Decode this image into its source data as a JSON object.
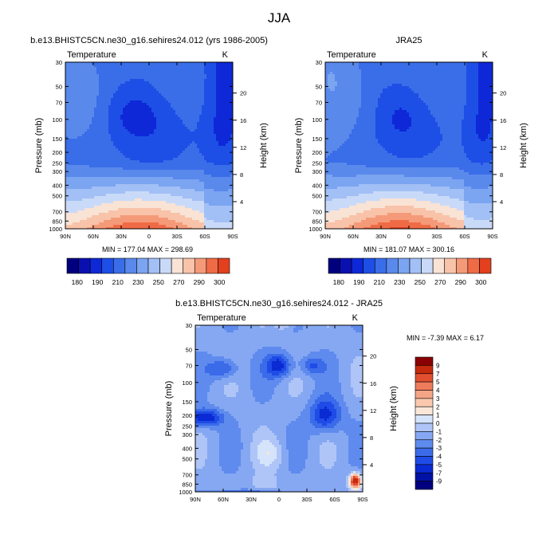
{
  "figure": {
    "title": "JJA"
  },
  "colors": {
    "model": [
      "#00007f",
      "#0a10b0",
      "#0e28d8",
      "#1d4fe6",
      "#3a6de8",
      "#5a89ec",
      "#7ba4f1",
      "#a2c0f5",
      "#c9daf8",
      "#f9e3d5",
      "#f8c3a9",
      "#f59a79",
      "#ef6b46",
      "#e2401f",
      "#c31c06",
      "#8b0000"
    ],
    "diff": [
      "#00007f",
      "#0012a6",
      "#0a2bd3",
      "#1f4be6",
      "#3b6be9",
      "#5f8bee",
      "#86a8f2",
      "#afc5f7",
      "#d5e3fb",
      "#fbe6d8",
      "#f9c8ae",
      "#f4a586",
      "#ee7b5b",
      "#e24f30",
      "#c52a0e",
      "#8b0000"
    ]
  },
  "chart_data": [
    {
      "type": "heatmap",
      "panel": "model",
      "title": "b.e13.BHISTC5CN.ne30_g16.sehires24.012 (yrs 1986-2005)",
      "variable": "Temperature",
      "units": "K",
      "xlabel": "",
      "ylabel": "Pressure (mb)",
      "y2label": "Height (km)",
      "x_ticks": [
        "90N",
        "60N",
        "30N",
        "0",
        "30S",
        "60S",
        "90S"
      ],
      "y_ticks": [
        30,
        50,
        70,
        100,
        150,
        200,
        250,
        300,
        400,
        500,
        700,
        850,
        1000
      ],
      "y2_ticks": [
        4,
        8,
        12,
        16,
        20
      ],
      "ylim": [
        1000,
        30
      ],
      "min": 177.04,
      "max": 298.69,
      "stats_text": "MIN = 177.04  MAX = 298.69",
      "levels": [
        180,
        190,
        200,
        210,
        220,
        230,
        240,
        250,
        260,
        270,
        280,
        290,
        300
      ],
      "colorbar_labels": [
        "180",
        "190",
        "210",
        "230",
        "250",
        "270",
        "290",
        "300"
      ],
      "field_key": "model"
    },
    {
      "type": "heatmap",
      "panel": "obs",
      "title": "JRA25",
      "variable": "Temperature",
      "units": "K",
      "xlabel": "",
      "ylabel": "Pressure (mb)",
      "y2label": "Height (km)",
      "x_ticks": [
        "90N",
        "60N",
        "30N",
        "0",
        "30S",
        "60S",
        "90S"
      ],
      "y_ticks": [
        30,
        50,
        70,
        100,
        150,
        200,
        250,
        300,
        400,
        500,
        700,
        850,
        1000
      ],
      "y2_ticks": [
        4,
        8,
        12,
        16,
        20
      ],
      "ylim": [
        1000,
        30
      ],
      "min": 181.07,
      "max": 300.16,
      "stats_text": "MIN = 181.07  MAX = 300.16",
      "levels": [
        180,
        190,
        200,
        210,
        220,
        230,
        240,
        250,
        260,
        270,
        280,
        290,
        300
      ],
      "colorbar_labels": [
        "180",
        "190",
        "210",
        "230",
        "250",
        "270",
        "290",
        "300"
      ],
      "field_key": "obs"
    },
    {
      "type": "heatmap",
      "panel": "diff",
      "title": "b.e13.BHISTC5CN.ne30_g16.sehires24.012 - JRA25",
      "variable": "Temperature",
      "units": "K",
      "xlabel": "",
      "ylabel": "Pressure (mb)",
      "y2label": "Height (km)",
      "x_ticks": [
        "90N",
        "60N",
        "30N",
        "0",
        "30S",
        "60S",
        "90S"
      ],
      "y_ticks": [
        30,
        50,
        70,
        100,
        150,
        200,
        250,
        300,
        400,
        500,
        700,
        850,
        1000
      ],
      "y2_ticks": [
        4,
        8,
        12,
        16,
        20
      ],
      "ylim": [
        1000,
        30
      ],
      "min": -7.39,
      "max": 6.17,
      "stats_text": "MIN =  -7.39  MAX =   6.17",
      "levels": [
        -9,
        -7,
        -5,
        -4,
        -3,
        -2,
        -1,
        0,
        1,
        2,
        3,
        4,
        5,
        7,
        9
      ],
      "colorbar_labels": [
        "9",
        "7",
        "5",
        "4",
        "3",
        "2",
        "1",
        "0",
        "-1",
        "-2",
        "-3",
        "-4",
        "-5",
        "-7",
        "-9"
      ],
      "field_key": "diff"
    }
  ]
}
